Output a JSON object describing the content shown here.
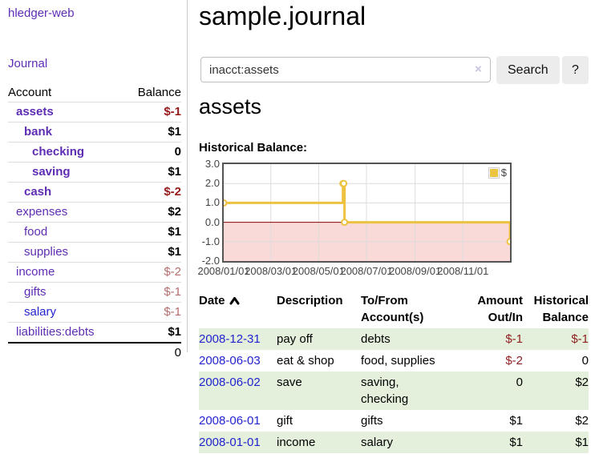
{
  "app": {
    "brand": "hledger-web",
    "nav_journal": "Journal"
  },
  "header": {
    "title": "sample.journal"
  },
  "search": {
    "value": "inacct:assets",
    "clear_icon": "×",
    "button": "Search",
    "help_button": "?"
  },
  "account_page": {
    "title": "assets",
    "chart_label": "Historical Balance:"
  },
  "sidebar": {
    "headers": {
      "account": "Account",
      "balance": "Balance"
    },
    "accounts": [
      {
        "name": "assets",
        "indent": 1,
        "bold": true,
        "balance": "$-1",
        "neg": "strong"
      },
      {
        "name": "bank",
        "indent": 2,
        "bold": true,
        "balance": "$1",
        "neg": "none"
      },
      {
        "name": "checking",
        "indent": 3,
        "bold": true,
        "balance": "0",
        "neg": "none"
      },
      {
        "name": "saving",
        "indent": 3,
        "bold": true,
        "balance": "$1",
        "neg": "none"
      },
      {
        "name": "cash",
        "indent": 2,
        "bold": true,
        "balance": "$-2",
        "neg": "strong"
      },
      {
        "name": "expenses",
        "indent": 1,
        "bold": false,
        "balance": "$2",
        "neg": "none"
      },
      {
        "name": "food",
        "indent": 2,
        "bold": false,
        "balance": "$1",
        "neg": "none"
      },
      {
        "name": "supplies",
        "indent": 2,
        "bold": false,
        "balance": "$1",
        "neg": "none"
      },
      {
        "name": "income",
        "indent": 1,
        "bold": false,
        "balance": "$-2",
        "neg": "soft"
      },
      {
        "name": "gifts",
        "indent": 2,
        "bold": false,
        "balance": "$-1",
        "neg": "soft"
      },
      {
        "name": "salary",
        "indent": 2,
        "bold": false,
        "balance": "$-1",
        "neg": "soft",
        "unvisited": true
      },
      {
        "name": "liabilities:debts",
        "indent": 1,
        "bold": false,
        "balance": "$1",
        "neg": "none"
      }
    ],
    "total": "0"
  },
  "chart_data": {
    "type": "line",
    "title": "Historical Balance:",
    "legend": "$",
    "series": [
      {
        "name": "$",
        "color": "#edc240",
        "steps": true,
        "points": [
          [
            "2008-01-01",
            1
          ],
          [
            "2008-06-01",
            2
          ],
          [
            "2008-06-02",
            2
          ],
          [
            "2008-06-03",
            0
          ],
          [
            "2008-12-31",
            -1
          ]
        ]
      }
    ],
    "xlim": [
      "2008-01-01",
      "2008-12-31"
    ],
    "ylim": [
      -2,
      3
    ],
    "x_ticks": [
      {
        "date": "2008-01-01",
        "label": "2008/01/01"
      },
      {
        "date": "2008-03-01",
        "label": "2008/03/01"
      },
      {
        "date": "2008-05-01",
        "label": "2008/05/01"
      },
      {
        "date": "2008-07-01",
        "label": "2008/07/01"
      },
      {
        "date": "2008-09-01",
        "label": "2008/09/01"
      },
      {
        "date": "2008-11-01",
        "label": "2008/11/01"
      }
    ],
    "y_ticks": [
      {
        "v": 3,
        "label": "3.0"
      },
      {
        "v": 2,
        "label": "2.0"
      },
      {
        "v": 1,
        "label": "1.0"
      },
      {
        "v": 0,
        "label": "0.0"
      },
      {
        "v": -1,
        "label": "-1.0"
      },
      {
        "v": -2,
        "label": "-2.0"
      }
    ],
    "negative_region_color": "#fad9d9",
    "zero_line_color": "#8b0000",
    "grid_color": "#dcdcdc",
    "border_color": "#545454"
  },
  "register": {
    "columns": [
      {
        "label": "Date",
        "sorted": "asc"
      },
      {
        "label": "Description"
      },
      {
        "label": "To/From Account(s)"
      },
      {
        "label": "Amount Out/In"
      },
      {
        "label": "Historical Balance"
      }
    ],
    "rows": [
      {
        "date": "2008-12-31",
        "description": "pay off",
        "accounts": "debts",
        "amount": "$-1",
        "amount_neg": true,
        "balance": "$-1",
        "balance_neg": true
      },
      {
        "date": "2008-06-03",
        "description": "eat & shop",
        "accounts": "food, supplies",
        "amount": "$-2",
        "amount_neg": true,
        "balance": "0",
        "balance_neg": false
      },
      {
        "date": "2008-06-02",
        "description": "save",
        "accounts": "saving, checking",
        "amount": "0",
        "amount_neg": false,
        "balance": "$2",
        "balance_neg": false
      },
      {
        "date": "2008-06-01",
        "description": "gift",
        "accounts": "gifts",
        "amount": "$1",
        "amount_neg": false,
        "balance": "$2",
        "balance_neg": false
      },
      {
        "date": "2008-01-01",
        "description": "income",
        "accounts": "salary",
        "amount": "$1",
        "amount_neg": false,
        "balance": "$1",
        "balance_neg": false
      }
    ]
  }
}
